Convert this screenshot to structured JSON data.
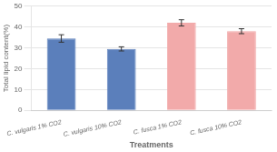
{
  "chart_data": {
    "type": "bar",
    "categories": [
      "C. vulgaris 1% CO2",
      "C. vulgaris 10% CO2",
      "C. fusca 1% CO2",
      "C. fusca 10% CO2"
    ],
    "values": [
      34.5,
      29.5,
      42.0,
      38.0
    ],
    "errors": [
      1.8,
      1.0,
      1.5,
      1.2
    ],
    "colors": [
      "#5b7fbb",
      "#5b7fbb",
      "#f2aaaa",
      "#f2aaaa"
    ],
    "xlabel": "Treatments",
    "ylabel": "Total lipid content(%)",
    "ylim": [
      0,
      50
    ],
    "yticks": [
      0,
      10,
      20,
      30,
      40,
      50
    ],
    "grid": true
  }
}
